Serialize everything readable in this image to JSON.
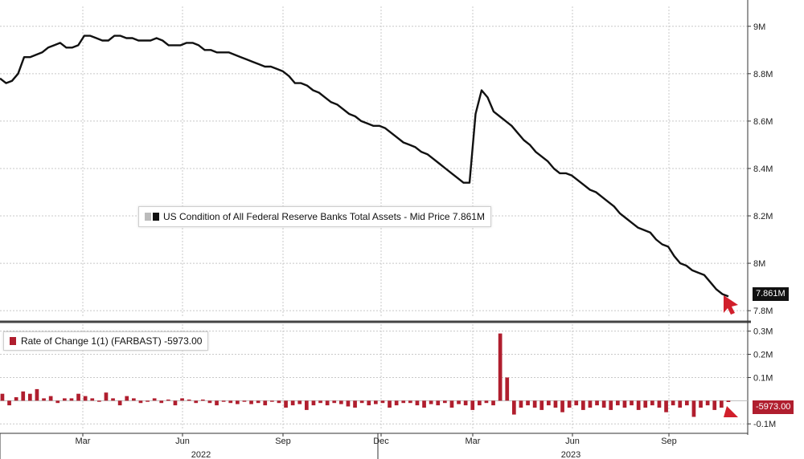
{
  "chart_data": [
    {
      "type": "line",
      "panel": "upper",
      "legend_text": "US Condition of All Federal Reserve Banks Total Assets - Mid Price 7.861M",
      "legend_placement": "center-left",
      "last_value_label": "7.861M",
      "y_ticks": [
        "9M",
        "8.8M",
        "8.6M",
        "8.4M",
        "8.2M",
        "8M",
        "7.8M"
      ],
      "y_tick_values": [
        9.0,
        8.8,
        8.6,
        8.4,
        8.2,
        8.0,
        7.8
      ],
      "ylim": [
        7.77,
        9.05
      ],
      "grid": true,
      "series": [
        {
          "values": [
            8.78,
            8.76,
            8.77,
            8.8,
            8.87,
            8.87,
            8.88,
            8.89,
            8.91,
            8.92,
            8.93,
            8.91,
            8.91,
            8.92,
            8.96,
            8.96,
            8.95,
            8.94,
            8.94,
            8.96,
            8.96,
            8.95,
            8.95,
            8.94,
            8.94,
            8.94,
            8.95,
            8.94,
            8.92,
            8.92,
            8.92,
            8.93,
            8.93,
            8.92,
            8.9,
            8.9,
            8.89,
            8.89,
            8.89,
            8.88,
            8.87,
            8.86,
            8.85,
            8.84,
            8.83,
            8.83,
            8.82,
            8.81,
            8.79,
            8.76,
            8.76,
            8.75,
            8.73,
            8.72,
            8.7,
            8.68,
            8.67,
            8.65,
            8.63,
            8.62,
            8.6,
            8.59,
            8.58,
            8.58,
            8.57,
            8.55,
            8.53,
            8.51,
            8.5,
            8.49,
            8.47,
            8.46,
            8.44,
            8.42,
            8.4,
            8.38,
            8.36,
            8.34,
            8.34,
            8.63,
            8.73,
            8.7,
            8.64,
            8.62,
            8.6,
            8.58,
            8.55,
            8.52,
            8.5,
            8.47,
            8.45,
            8.43,
            8.4,
            8.38,
            8.38,
            8.37,
            8.35,
            8.33,
            8.31,
            8.3,
            8.28,
            8.26,
            8.24,
            8.21,
            8.19,
            8.17,
            8.15,
            8.14,
            8.13,
            8.1,
            8.08,
            8.07,
            8.03,
            8.0,
            7.99,
            7.97,
            7.96,
            7.95,
            7.92,
            7.89,
            7.87,
            7.86
          ]
        }
      ]
    },
    {
      "type": "bar",
      "panel": "lower",
      "legend_text": "Rate of Change 1(1) (FARBAST) -5973.00",
      "legend_placement": "top-left",
      "last_value_label": "-5973.00",
      "y_ticks": [
        "0.3M",
        "0.2M",
        "0.1M",
        "-0.1M"
      ],
      "y_tick_values": [
        0.3,
        0.2,
        0.1,
        -0.1
      ],
      "ylim": [
        -0.12,
        0.33
      ],
      "grid": true,
      "series": [
        {
          "values": [
            0.03,
            -0.02,
            0.015,
            0.04,
            0.03,
            0.05,
            0.01,
            0.02,
            -0.01,
            0.01,
            0.01,
            0.03,
            0.02,
            0.01,
            -0.005,
            0.035,
            0.01,
            -0.02,
            0.02,
            0.01,
            -0.01,
            -0.005,
            0.01,
            -0.01,
            0.005,
            -0.02,
            0.01,
            0.005,
            -0.01,
            0.005,
            -0.01,
            -0.02,
            -0.005,
            -0.01,
            -0.015,
            -0.005,
            -0.015,
            -0.01,
            -0.02,
            -0.005,
            -0.01,
            -0.03,
            -0.02,
            -0.015,
            -0.04,
            -0.02,
            -0.01,
            -0.02,
            -0.01,
            -0.015,
            -0.025,
            -0.03,
            -0.01,
            -0.02,
            -0.015,
            -0.01,
            -0.03,
            -0.02,
            -0.01,
            -0.01,
            -0.02,
            -0.03,
            -0.015,
            -0.02,
            -0.01,
            -0.03,
            -0.015,
            -0.02,
            -0.04,
            -0.02,
            -0.01,
            -0.02,
            0.29,
            0.1,
            -0.06,
            -0.03,
            -0.02,
            -0.03,
            -0.04,
            -0.02,
            -0.03,
            -0.05,
            -0.03,
            -0.02,
            -0.04,
            -0.03,
            -0.02,
            -0.03,
            -0.04,
            -0.02,
            -0.03,
            -0.02,
            -0.04,
            -0.03,
            -0.02,
            -0.03,
            -0.05,
            -0.02,
            -0.03,
            -0.02,
            -0.07,
            -0.03,
            -0.02,
            -0.04,
            -0.03,
            -0.006
          ]
        }
      ]
    }
  ],
  "x_axis": {
    "month_labels": [
      "Mar",
      "Jun",
      "Sep",
      "Dec",
      "Mar",
      "Jun",
      "Sep"
    ],
    "year_labels": [
      "2022",
      "2023"
    ]
  },
  "colors": {
    "line": "#111111",
    "bar": "#b01e2e",
    "grid": "#c8c8c8",
    "divider": "#444444",
    "price_tag_bg": "#111111",
    "change_tag_bg": "#b01e2e",
    "arrow": "#d11f2b",
    "legend_swatch_light": "#bbbbbb",
    "legend_swatch_dark": "#111111"
  }
}
